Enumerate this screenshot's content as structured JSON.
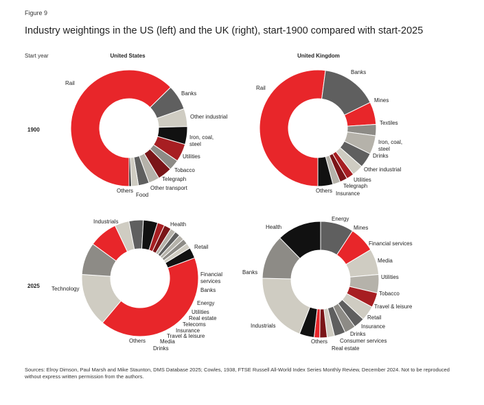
{
  "figure_label": "Figure 9",
  "title": "Industry weightings in the US (left) and the UK (right), start-1900 compared with start-2025",
  "row_header": "Start year",
  "column_headers": {
    "us": "United States",
    "uk": "United Kingdom"
  },
  "years": [
    "1900",
    "2025"
  ],
  "sources": "Sources: Elroy Dimson, Paul Marsh and Mike Staunton, DMS Database 2025; Cowles, 1938, FTSE Russell All-World Index Series Monthly Review, December 2024. Not to be reproduced without express written permission from the authors.",
  "colors": {
    "red": "#e8262a",
    "darkgrey": "#5f5f5f",
    "beige": "#cfccc2",
    "black": "#111111",
    "darkred": "#a71e22",
    "midgrey": "#8d8b86",
    "maroon": "#7a1518",
    "lightgrey": "#b5b2aa"
  },
  "chart_data": [
    {
      "type": "pie",
      "variant": "donut",
      "country": "United States",
      "year": "1900",
      "slices": [
        {
          "label": "Rail",
          "value": 63,
          "color": "red"
        },
        {
          "label": "Banks",
          "value": 7,
          "color": "darkgrey"
        },
        {
          "label": "Other industrial",
          "value": 5,
          "color": "beige"
        },
        {
          "label": "Iron, coal, steel",
          "value": 5,
          "color": "black"
        },
        {
          "label": "Utilities",
          "value": 5,
          "color": "darkred"
        },
        {
          "label": "Tobacco",
          "value": 3,
          "color": "midgrey"
        },
        {
          "label": "Telegraph",
          "value": 4,
          "color": "maroon"
        },
        {
          "label": "Other transport",
          "value": 3,
          "color": "lightgrey"
        },
        {
          "label": "Food",
          "value": 3,
          "color": "darkgrey"
        },
        {
          "label": "Others",
          "value": 2,
          "color": "beige"
        },
        {
          "label": "",
          "value": 0.6,
          "color": "black"
        }
      ]
    },
    {
      "type": "pie",
      "variant": "donut",
      "country": "United Kingdom",
      "year": "1900",
      "slices": [
        {
          "label": "Rail",
          "value": 50,
          "color": "red"
        },
        {
          "label": "Banks",
          "value": 15,
          "color": "darkgrey"
        },
        {
          "label": "Mines",
          "value": 6,
          "color": "red"
        },
        {
          "label": "Textiles",
          "value": 3,
          "color": "midgrey"
        },
        {
          "label": "Iron, coal, steel",
          "value": 5,
          "color": "lightgrey"
        },
        {
          "label": "Drinks",
          "value": 4,
          "color": "darkgrey"
        },
        {
          "label": "Other industrial",
          "value": 3,
          "color": "beige"
        },
        {
          "label": "Utilities",
          "value": 2,
          "color": "darkred"
        },
        {
          "label": "Telegraph",
          "value": 2,
          "color": "maroon"
        },
        {
          "label": "Insurance",
          "value": 2,
          "color": "lightgrey"
        },
        {
          "label": "Others",
          "value": 4,
          "color": "black"
        }
      ]
    },
    {
      "type": "pie",
      "variant": "donut",
      "country": "United States",
      "year": "2025",
      "slices": [
        {
          "label": "Industrials",
          "value": 15,
          "color": "beige"
        },
        {
          "label": "Health",
          "value": 9,
          "color": "midgrey"
        },
        {
          "label": "Retail",
          "value": 8,
          "color": "red"
        },
        {
          "label": "Financial services",
          "value": 4,
          "color": "beige"
        },
        {
          "label": "Banks",
          "value": 4,
          "color": "darkgrey"
        },
        {
          "label": "Energy",
          "value": 4,
          "color": "black"
        },
        {
          "label": "Utilities",
          "value": 2,
          "color": "darkred"
        },
        {
          "label": "Real estate",
          "value": 2,
          "color": "maroon"
        },
        {
          "label": "Telecoms",
          "value": 1.5,
          "color": "lightgrey"
        },
        {
          "label": "Insurance",
          "value": 1.5,
          "color": "darkgrey"
        },
        {
          "label": "Travel & leisure",
          "value": 1.5,
          "color": "lightgrey"
        },
        {
          "label": "Media",
          "value": 1.5,
          "color": "midgrey"
        },
        {
          "label": "Drinks",
          "value": 1.5,
          "color": "beige"
        },
        {
          "label": "Others",
          "value": 3,
          "color": "black"
        },
        {
          "label": "Technology",
          "value": 42,
          "color": "red"
        }
      ]
    },
    {
      "type": "pie",
      "variant": "donut",
      "country": "United Kingdom",
      "year": "2025",
      "slices": [
        {
          "label": "Energy",
          "value": 9,
          "color": "darkgrey"
        },
        {
          "label": "Mines",
          "value": 7,
          "color": "red"
        },
        {
          "label": "Financial services",
          "value": 7,
          "color": "beige"
        },
        {
          "label": "Media",
          "value": 5,
          "color": "lightgrey"
        },
        {
          "label": "Utilities",
          "value": 4,
          "color": "darkred"
        },
        {
          "label": "Tobacco",
          "value": 4,
          "color": "beige"
        },
        {
          "label": "Travel & leisure",
          "value": 3,
          "color": "darkgrey"
        },
        {
          "label": "Retail",
          "value": 3,
          "color": "midgrey"
        },
        {
          "label": "Insurance",
          "value": 3,
          "color": "darkgrey"
        },
        {
          "label": "Drinks",
          "value": 2,
          "color": "beige"
        },
        {
          "label": "Consumer services",
          "value": 2,
          "color": "maroon"
        },
        {
          "label": "Real estate",
          "value": 1.5,
          "color": "red"
        },
        {
          "label": "Others",
          "value": 4,
          "color": "black"
        },
        {
          "label": "Industrials",
          "value": 19,
          "color": "beige"
        },
        {
          "label": "Banks",
          "value": 12,
          "color": "midgrey"
        },
        {
          "label": "Health",
          "value": 12,
          "color": "black"
        }
      ]
    }
  ]
}
